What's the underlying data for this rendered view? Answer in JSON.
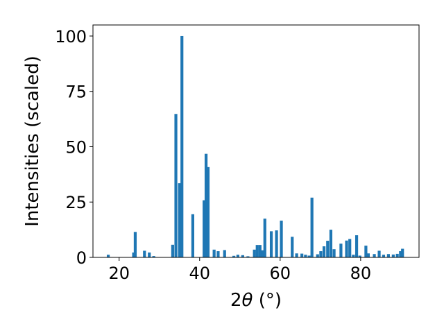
{
  "chart_data": {
    "type": "bar",
    "xlabel_prefix": "2",
    "xlabel_theta": "θ",
    "xlabel_suffix": " (°)",
    "ylabel": "Intensities (scaled)",
    "xlim": [
      13.5,
      94.5
    ],
    "ylim": [
      0,
      105
    ],
    "xticks": [
      20,
      40,
      60,
      80
    ],
    "yticks": [
      0,
      25,
      50,
      75,
      100
    ],
    "bar_color": "#1f77b4",
    "grid": false,
    "x": [
      17.3,
      23.6,
      24.0,
      26.3,
      27.5,
      28.6,
      33.3,
      34.1,
      35.0,
      35.6,
      38.3,
      41.1,
      41.6,
      42.1,
      43.6,
      44.6,
      46.2,
      48.5,
      49.5,
      50.7,
      52.0,
      53.6,
      54.3,
      55.0,
      55.6,
      56.2,
      57.8,
      59.1,
      60.3,
      63.0,
      64.1,
      65.4,
      66.3,
      67.2,
      67.9,
      69.3,
      70.1,
      70.9,
      71.8,
      72.6,
      73.4,
      75.1,
      76.5,
      77.3,
      78.2,
      79.0,
      79.8,
      81.3,
      81.9,
      83.4,
      84.6,
      85.7,
      86.9,
      88.1,
      89.1,
      89.9,
      90.4
    ],
    "values": [
      1.2,
      2.2,
      11.5,
      3.0,
      2.2,
      0.6,
      5.7,
      64.8,
      33.5,
      100.0,
      19.5,
      25.8,
      46.8,
      40.8,
      3.5,
      2.8,
      3.3,
      0.7,
      1.2,
      1.0,
      0.5,
      3.5,
      5.6,
      5.6,
      3.2,
      17.5,
      11.8,
      12.2,
      16.6,
      9.3,
      1.8,
      1.7,
      1.2,
      0.8,
      27.0,
      1.4,
      2.8,
      5.0,
      7.5,
      12.5,
      3.7,
      6.2,
      7.6,
      8.3,
      1.2,
      10.0,
      0.8,
      5.3,
      1.8,
      1.5,
      3.0,
      1.2,
      1.5,
      1.3,
      1.6,
      2.8,
      3.9
    ]
  }
}
